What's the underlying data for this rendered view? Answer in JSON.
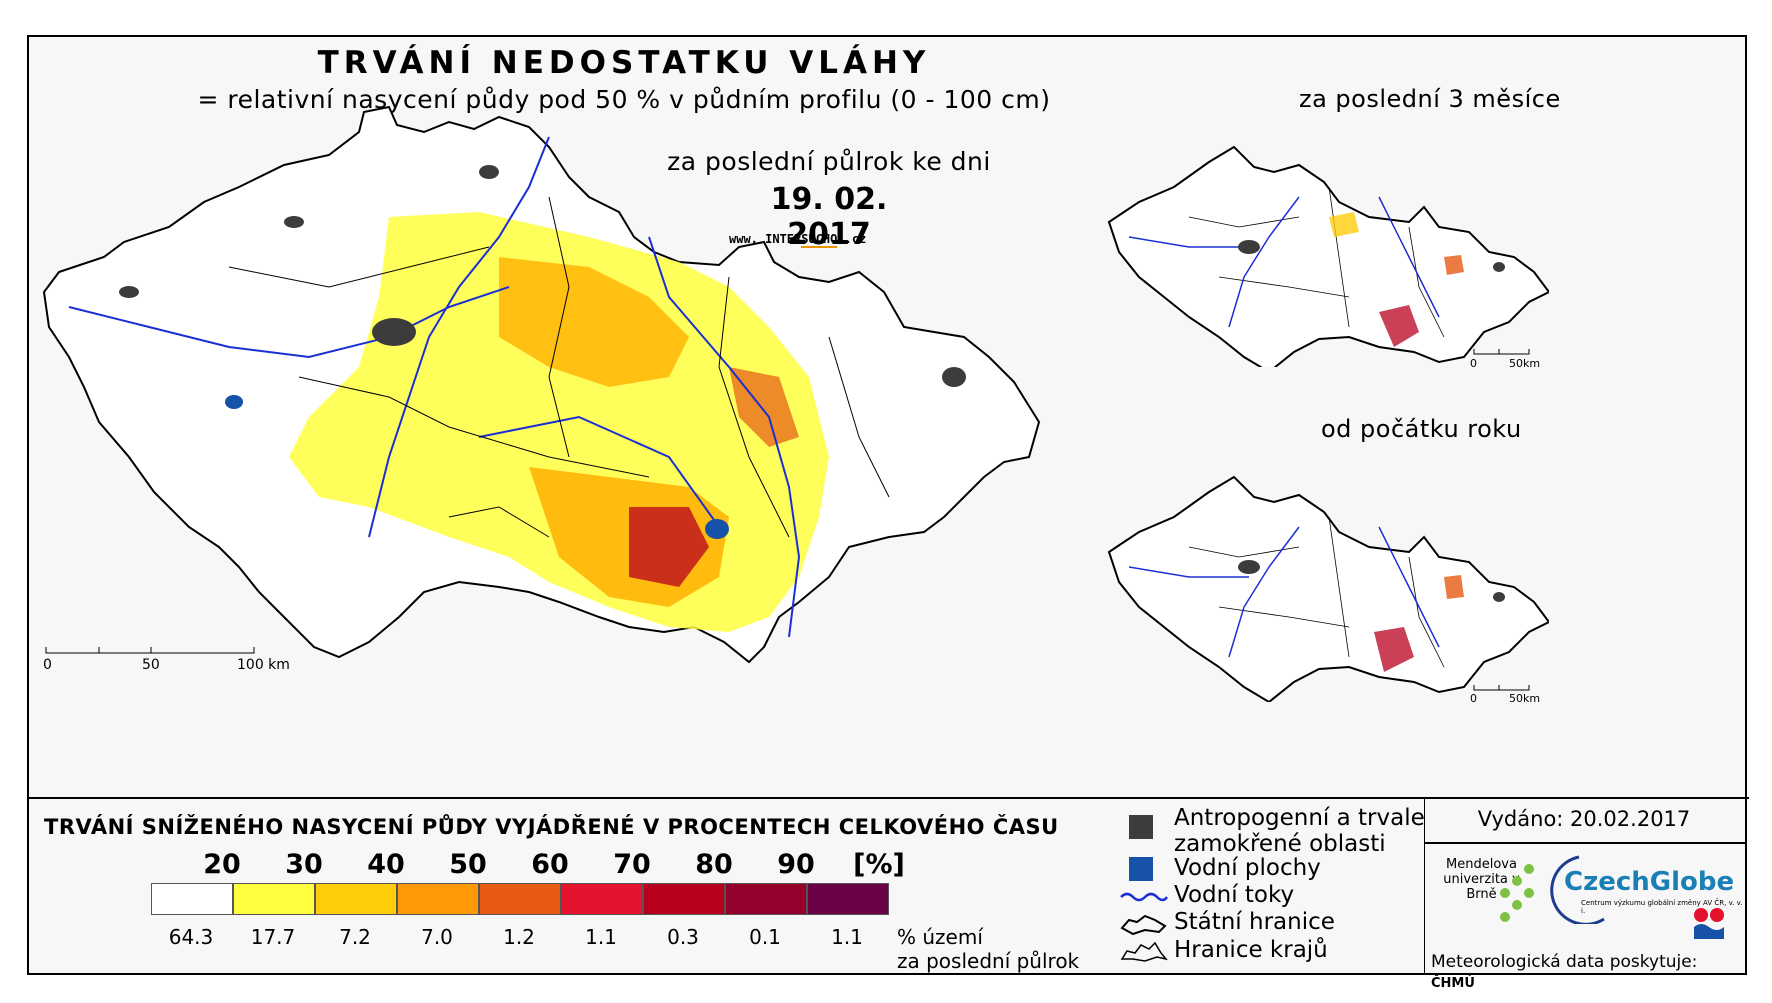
{
  "header": {
    "title": "TRVÁNÍ NEDOSTATKU VLÁHY",
    "subtitle": "= relativní nasycení půdy pod 50 % v půdním profilu (0 - 100 cm)",
    "period": "za poslední půlrok ke dni",
    "date": "19. 02. 2017",
    "website_prefix": "www. INTER",
    "website_brand": "SUCHO",
    "website_suffix": " .cz"
  },
  "insets": {
    "three_months": "za poslední 3 měsíce",
    "year_start": "od počátku roku",
    "scale_zero": "0",
    "scale_end": "50km"
  },
  "main_map": {
    "scale_zero": "0",
    "scale_mid": "50",
    "scale_end": "100 km"
  },
  "legend": {
    "heading": "TRVÁNÍ SNÍŽENÉHO NASYCENÍ PŮDY VYJÁDŘENÉ V PROCENTECH CELKOVÉHO ČASU",
    "class_labels": [
      "20",
      "30",
      "40",
      "50",
      "60",
      "70",
      "80",
      "90",
      "[%]"
    ],
    "colors": [
      "#ffffff",
      "#ffff40",
      "#ffcc0a",
      "#ff9a06",
      "#e65a14",
      "#e3122d",
      "#b8001e",
      "#96002c",
      "#6a0045"
    ],
    "percent_values": [
      "64.3",
      "17.7",
      "7.2",
      "7.0",
      "1.2",
      "1.1",
      "0.3",
      "0.1",
      "1.1"
    ],
    "percent_unit": "% území",
    "percent_note": "za poslední půlrok"
  },
  "key": {
    "anthropogenic_line1": "Antropogenní a trvale",
    "anthropogenic_line2": "zamokřené oblasti",
    "water_areas": "Vodní plochy",
    "rivers": "Vodní toky",
    "state_border": "Státní hranice",
    "region_border": "Hranice krajů",
    "colors": {
      "anthropogenic": "#3c3c3c",
      "water": "#1552a8",
      "river": "#1a2fd4"
    }
  },
  "credits": {
    "issued": "Vydáno: 20.02.2017",
    "mendel": "Mendelova univerzita v Brně",
    "czechglobe": "CzechGlobe",
    "czechglobe_sub": "Centrum výzkumu globální změny AV ČR, v. v. i.",
    "provider": "Meteorologická data poskytuje:",
    "provider_org": "ČHMÚ"
  }
}
